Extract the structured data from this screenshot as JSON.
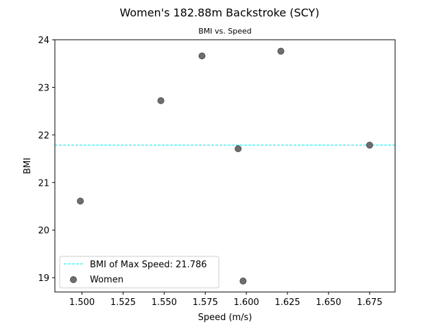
{
  "chart_data": {
    "type": "scatter",
    "title": "Women's 182.88m Backstroke (SCY)",
    "subtitle": "BMI vs. Speed",
    "xlabel": "Speed (m/s)",
    "ylabel": "BMI",
    "xlim": [
      1.4835,
      1.6905
    ],
    "ylim": [
      18.7,
      24.0
    ],
    "xticks": [
      "1.500",
      "1.525",
      "1.550",
      "1.575",
      "1.600",
      "1.625",
      "1.650",
      "1.675"
    ],
    "yticks": [
      "19",
      "20",
      "21",
      "22",
      "23",
      "24"
    ],
    "grid": false,
    "legend_position": "lower-left",
    "series": [
      {
        "name": "Women",
        "color": "#6e6e6e",
        "x": [
          1.499,
          1.548,
          1.573,
          1.595,
          1.598,
          1.621,
          1.675
        ],
        "y": [
          20.61,
          22.72,
          23.66,
          21.71,
          18.93,
          23.76,
          21.786
        ]
      }
    ],
    "reference_line": {
      "orientation": "horizontal",
      "y": 21.786,
      "label": "BMI of Max Speed: 21.786",
      "color": "#00e5e5",
      "style": "dashed"
    }
  }
}
